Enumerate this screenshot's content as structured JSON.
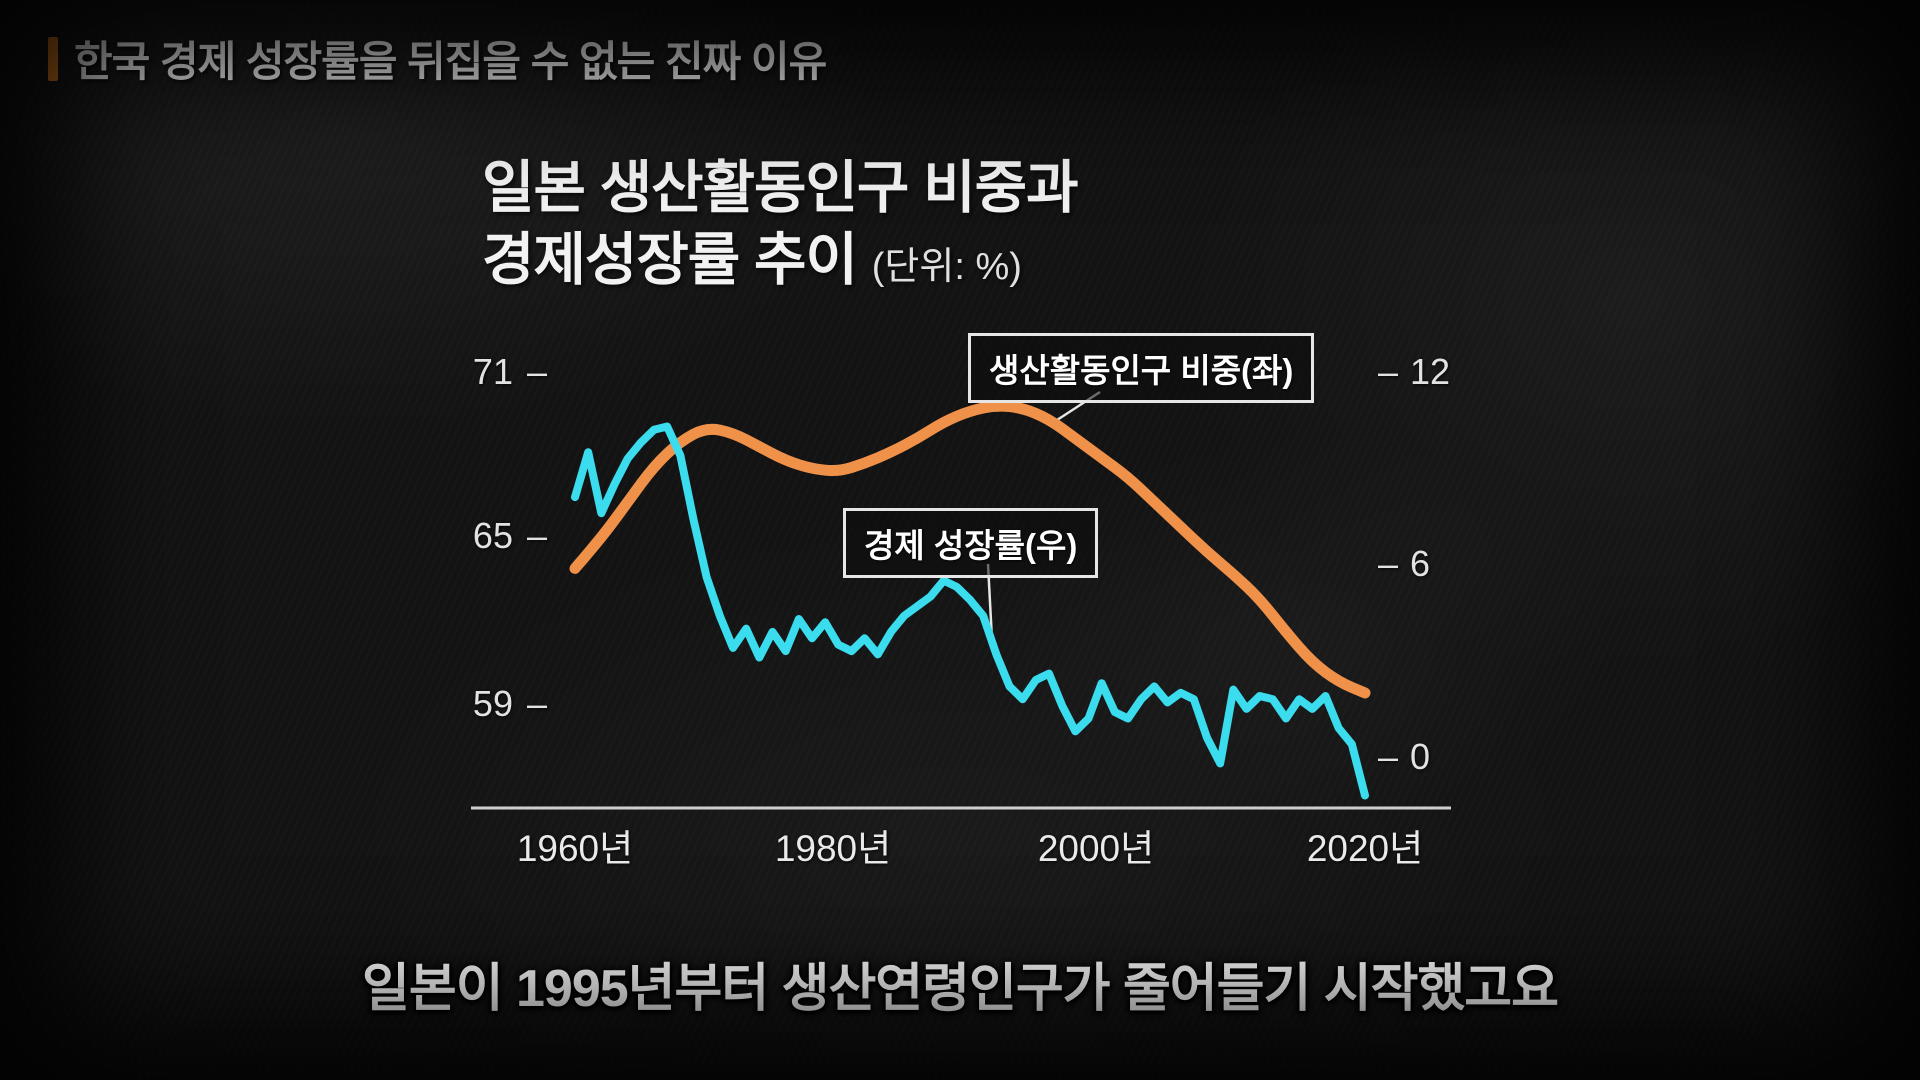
{
  "header": {
    "title": "한국 경제 성장률을 뒤집을 수 없는 진짜 이유",
    "accent_color": "#E8831F"
  },
  "chart": {
    "title_line1": "일본 생산활동인구 비중과",
    "title_line2": "경제성장률 추이",
    "unit_label": "(단위: %)",
    "left_axis_ticks": [
      "71",
      "65",
      "59"
    ],
    "right_axis_ticks": [
      "12",
      "6",
      "0"
    ],
    "x_axis_labels": [
      "1960년",
      "1980년",
      "2000년",
      "2020년"
    ],
    "legend_population": "생산활동인구 비중(좌)",
    "legend_growth": "경제 성장률(우)",
    "colors": {
      "population_line": "#F0914A",
      "growth_line": "#3ADCEE",
      "axis": "#CFCFCF",
      "text": "#F2F2F2"
    }
  },
  "caption": {
    "text": "일본이 1995년부터 생산연령인구가 줄어들기 시작했고요"
  },
  "chart_data": {
    "type": "line",
    "title": "일본 생산활동인구 비중과 경제성장률 추이",
    "unit": "%",
    "x_ticks": [
      "1960년",
      "1980년",
      "2000년",
      "2020년"
    ],
    "left_axis": {
      "label": "생산활동인구 비중 (%)",
      "ticks": [
        71,
        65,
        59
      ],
      "range": [
        57.5,
        72.5
      ]
    },
    "right_axis": {
      "label": "경제 성장률 (%)",
      "ticks": [
        12,
        6,
        0
      ],
      "range": [
        -2.5,
        13
      ]
    },
    "grid": false,
    "legend_position": "inside-boxed",
    "series": [
      {
        "name": "생산활동인구 비중(좌)",
        "axis": "left",
        "color": "#F0914A",
        "smooth": true,
        "x": [
          1960,
          1962,
          1964,
          1966,
          1968,
          1970,
          1972,
          1974,
          1976,
          1978,
          1980,
          1982,
          1984,
          1986,
          1988,
          1990,
          1992,
          1994,
          1996,
          1998,
          2000,
          2002,
          2004,
          2006,
          2008,
          2010,
          2012,
          2014,
          2016,
          2018,
          2020
        ],
        "values": [
          63.9,
          65.0,
          66.3,
          67.6,
          68.5,
          69.0,
          68.8,
          68.3,
          67.8,
          67.5,
          67.4,
          67.7,
          68.1,
          68.6,
          69.2,
          69.6,
          69.8,
          69.7,
          69.3,
          68.6,
          67.9,
          67.2,
          66.3,
          65.4,
          64.5,
          63.7,
          62.8,
          61.6,
          60.5,
          59.8,
          59.4
        ]
      },
      {
        "name": "경제 성장률(우)",
        "axis": "right",
        "color": "#3ADCEE",
        "smooth": false,
        "x": [
          1960,
          1961,
          1962,
          1963,
          1964,
          1965,
          1966,
          1967,
          1968,
          1969,
          1970,
          1971,
          1972,
          1973,
          1974,
          1975,
          1976,
          1977,
          1978,
          1979,
          1980,
          1981,
          1982,
          1983,
          1984,
          1985,
          1986,
          1987,
          1988,
          1989,
          1990,
          1991,
          1992,
          1993,
          1994,
          1995,
          1996,
          1997,
          1998,
          1999,
          2000,
          2001,
          2002,
          2003,
          2004,
          2005,
          2006,
          2007,
          2008,
          2009,
          2010,
          2011,
          2012,
          2013,
          2014,
          2015,
          2016,
          2017,
          2018,
          2019,
          2020
        ],
        "values": [
          8.1,
          9.5,
          7.6,
          8.5,
          9.3,
          9.8,
          10.2,
          10.3,
          9.4,
          7.4,
          5.6,
          4.4,
          3.4,
          4.0,
          3.1,
          3.9,
          3.3,
          4.3,
          3.7,
          4.2,
          3.5,
          3.3,
          3.7,
          3.2,
          3.9,
          4.4,
          4.7,
          5.0,
          5.5,
          5.3,
          4.9,
          4.4,
          3.2,
          2.2,
          1.8,
          2.4,
          2.6,
          1.6,
          0.8,
          1.2,
          2.3,
          1.4,
          1.2,
          1.8,
          2.2,
          1.7,
          2.0,
          1.8,
          0.6,
          -0.2,
          2.1,
          1.5,
          1.9,
          1.8,
          1.2,
          1.8,
          1.5,
          1.9,
          0.9,
          0.4,
          -1.2
        ]
      }
    ]
  }
}
